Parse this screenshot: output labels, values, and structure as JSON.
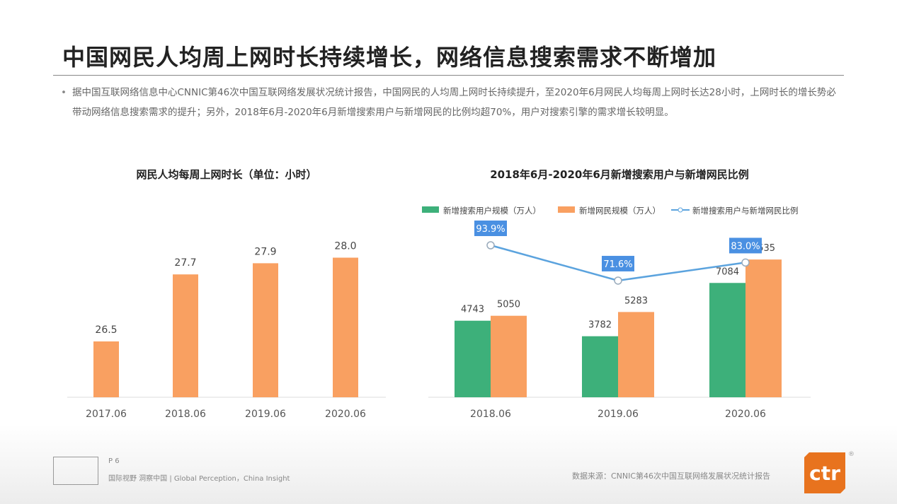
{
  "title": "中国网民人均周上网时长持续增长，网络信息搜索需求不断增加",
  "paragraph": "据中国互联网络信息中心CNNIC第46次中国互联网络发展状况统计报告，中国网民的人均周上网时长持续提升，至2020年6月网民人均每周上网时长达28小时，上网时长的增长势必带动网络信息搜索需求的提升；另外，2018年6月-2020年6月新增搜索用户与新增网民的比例均超70%，用户对搜索引擎的需求增长较明显。",
  "footer": {
    "page": "P 6",
    "slogan": "国际视野 洞察中国 | Global Perception，China Insight",
    "source": "数据来源：CNNIC第46次中国互联网络发展状况统计报告",
    "logo_text": "ctr",
    "logo_color": "#e8731e"
  },
  "chart_data": [
    {
      "type": "bar",
      "title": "网民人均每周上网时长（单位：小时）",
      "categories": [
        "2017.06",
        "2018.06",
        "2019.06",
        "2020.06"
      ],
      "values": [
        26.5,
        27.7,
        27.9,
        28.0
      ],
      "data_labels": [
        "26.5",
        "27.7",
        "27.9",
        "28.0"
      ],
      "ylim": [
        25.5,
        28.5
      ],
      "color": "#f9a061",
      "grid": false
    },
    {
      "type": "bar+line",
      "title": "2018年6月-2020年6月新增搜索用户与新增网民比例",
      "categories": [
        "2018.06",
        "2019.06",
        "2020.06"
      ],
      "legend_position": "top",
      "series": [
        {
          "name": "新增搜索用户规模（万人）",
          "type": "bar",
          "color": "#3db07a",
          "values": [
            4743,
            3782,
            7084
          ]
        },
        {
          "name": "新增网民规模（万人）",
          "type": "bar",
          "color": "#f9a061",
          "values": [
            5050,
            5283,
            8535
          ]
        },
        {
          "name": "新增搜索用户与新增网民比例",
          "type": "line",
          "color": "#5ba3de",
          "values": [
            93.9,
            71.6,
            83.0
          ],
          "labels": [
            "93.9%",
            "71.6%",
            "83.0%"
          ]
        }
      ],
      "ylim_bars": [
        0,
        9000
      ],
      "grid": false
    }
  ]
}
